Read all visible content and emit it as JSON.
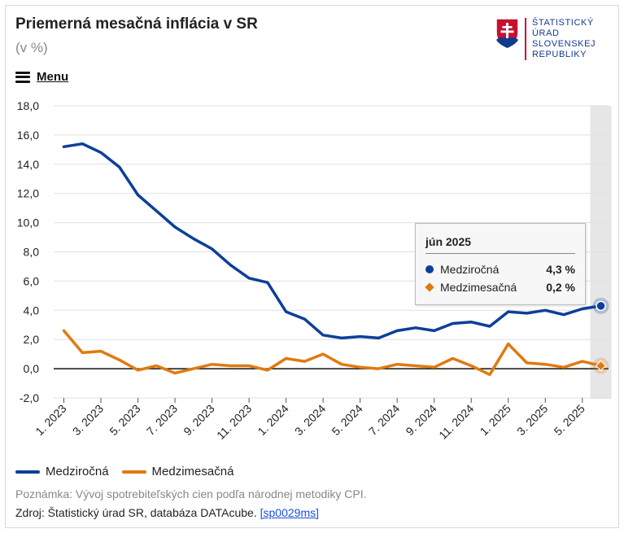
{
  "header": {
    "title": "Priemerná mesačná inflácia v SR",
    "subtitle": "(v %)",
    "menu_label": "Menu"
  },
  "logo": {
    "lines": [
      "ŠTATISTICKÝ",
      "ÚRAD",
      "SLOVENSKEJ",
      "REPUBLIKY"
    ],
    "color_red": "#c8102e",
    "color_blue": "#123a8f"
  },
  "chart_data": {
    "type": "line",
    "title": "Priemerná mesačná inflácia v SR",
    "subtitle": "(v %)",
    "ylim": [
      -2,
      18
    ],
    "yticks": [
      -2,
      0,
      2,
      4,
      6,
      8,
      10,
      12,
      14,
      16,
      18
    ],
    "ytick_labels": [
      "-2,0",
      "0,0",
      "2,0",
      "4,0",
      "6,0",
      "8,0",
      "10,0",
      "12,0",
      "14,0",
      "16,0",
      "18,0"
    ],
    "x": [
      "1/2023",
      "2/2023",
      "3/2023",
      "4/2023",
      "5/2023",
      "6/2023",
      "7/2023",
      "8/2023",
      "9/2023",
      "10/2023",
      "11/2023",
      "12/2023",
      "1/2024",
      "2/2024",
      "3/2024",
      "4/2024",
      "5/2024",
      "6/2024",
      "7/2024",
      "8/2024",
      "9/2024",
      "10/2024",
      "11/2024",
      "12/2024",
      "1/2025",
      "2/2025",
      "3/2025",
      "4/2025",
      "5/2025",
      "6/2025"
    ],
    "xtick_labels": [
      "1. 2023",
      "3. 2023",
      "5. 2023",
      "7. 2023",
      "9. 2023",
      "11. 2023",
      "1. 2024",
      "3. 2024",
      "5. 2024",
      "7. 2024",
      "9. 2024",
      "11. 2024",
      "1. 2025",
      "3. 2025",
      "5. 2025"
    ],
    "xtick_indices": [
      0,
      2,
      4,
      6,
      8,
      10,
      12,
      14,
      16,
      18,
      20,
      22,
      24,
      26,
      28
    ],
    "grid": true,
    "highlight_index": 29,
    "series": [
      {
        "name": "Medziročná",
        "color": "#0d3f9a",
        "marker": "circle",
        "values": [
          15.2,
          15.4,
          14.8,
          13.8,
          11.9,
          10.8,
          9.7,
          8.9,
          8.2,
          7.1,
          6.2,
          5.9,
          3.9,
          3.4,
          2.3,
          2.1,
          2.2,
          2.1,
          2.6,
          2.8,
          2.6,
          3.1,
          3.2,
          2.9,
          3.9,
          3.8,
          4.0,
          3.7,
          4.1,
          4.3
        ]
      },
      {
        "name": "Medzimesačná",
        "color": "#e07a10",
        "marker": "diamond",
        "values": [
          2.6,
          1.1,
          1.2,
          0.6,
          -0.1,
          0.2,
          -0.3,
          0.0,
          0.3,
          0.2,
          0.2,
          -0.1,
          0.7,
          0.5,
          1.0,
          0.3,
          0.1,
          0.0,
          0.3,
          0.2,
          0.1,
          0.7,
          0.2,
          -0.4,
          1.7,
          0.4,
          0.3,
          0.1,
          0.5,
          0.2
        ]
      }
    ],
    "legend": "bottom-left"
  },
  "tooltip": {
    "title": "jún 2025",
    "rows": [
      {
        "name": "Medziročná",
        "value": "4,3 %"
      },
      {
        "name": "Medzimesačná",
        "value": "0,2 %"
      }
    ]
  },
  "footer": {
    "note": "Poznámka: Vývoj spotrebiteľských cien podľa národnej metodiky CPI.",
    "source_text": "Zdroj: Štatistický úrad SR, databáza DATAcube.",
    "source_link": "[sp0029ms]"
  }
}
